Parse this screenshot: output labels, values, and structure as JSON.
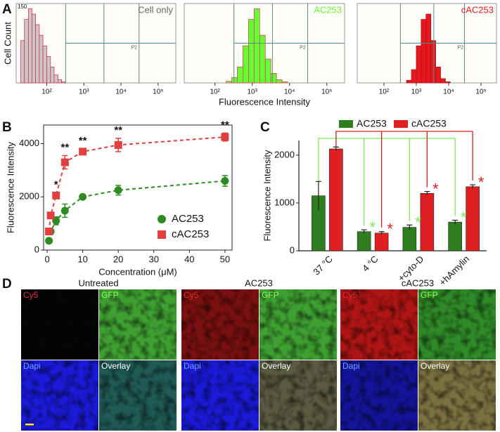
{
  "chart_data": [
    {
      "type": "histogram",
      "panel": "A",
      "ylabel": "Cell Count",
      "xscale": "log",
      "xlim": [
        15,
        300000
      ],
      "xticks": [
        {
          "value": 100,
          "label": "10²"
        },
        {
          "value": 1000,
          "label": "10³"
        },
        {
          "value": 10000,
          "label": "10⁴"
        },
        {
          "value": 100000,
          "label": "10⁵"
        }
      ],
      "ylim": [
        0,
        150
      ],
      "yticks": [
        150
      ],
      "label": "Cell only",
      "label_color": "#666666",
      "gate_label": "P2",
      "color": "#c8c8c8",
      "edgecolor": "#e0304a",
      "bins": [
        20,
        25,
        32,
        40,
        50,
        63,
        79,
        100,
        126,
        158,
        200,
        251,
        316
      ],
      "counts": [
        80,
        120,
        140,
        130,
        110,
        90,
        70,
        50,
        30,
        15,
        6,
        2
      ]
    },
    {
      "type": "histogram",
      "xlabel": "Fluorescence Intensity",
      "xscale": "log",
      "xlim": [
        15,
        300000
      ],
      "xticks": [
        {
          "value": 100,
          "label": "10²"
        },
        {
          "value": 1000,
          "label": "10³"
        },
        {
          "value": 10000,
          "label": "10⁴"
        },
        {
          "value": 100000,
          "label": "10⁵"
        }
      ],
      "ylim": [
        0,
        150
      ],
      "label": "AC253",
      "label_color": "#66ff33",
      "gate_label": "P2",
      "color": "#66ff33",
      "edgecolor": "#e04060",
      "bins": [
        200,
        282,
        398,
        562,
        794,
        1122,
        1585,
        2239,
        3162,
        4467,
        6310,
        8913
      ],
      "counts": [
        3,
        10,
        30,
        70,
        120,
        140,
        90,
        45,
        18,
        6,
        2
      ]
    },
    {
      "type": "histogram",
      "xscale": "log",
      "xlim": [
        15,
        300000
      ],
      "xticks": [
        {
          "value": 100,
          "label": "10²"
        },
        {
          "value": 1000,
          "label": "10³"
        },
        {
          "value": 10000,
          "label": "10⁴"
        },
        {
          "value": 100000,
          "label": "10⁵"
        }
      ],
      "ylim": [
        0,
        150
      ],
      "label": "cAC253",
      "label_color": "#e8191e",
      "gate_label": "P2",
      "color": "#e8191e",
      "edgecolor": "#b01018",
      "bins": [
        500,
        708,
        1000,
        1413,
        1995,
        2818,
        3981,
        5623,
        7943,
        11220
      ],
      "counts": [
        5,
        25,
        70,
        120,
        130,
        80,
        30,
        8,
        2
      ]
    },
    {
      "type": "line",
      "panel": "B",
      "xlabel": "Concentration (μM)",
      "ylabel": "Fluorescence Intensity",
      "x": [
        0.5,
        1,
        2.5,
        5,
        10,
        20,
        50
      ],
      "xlim": [
        -1,
        52
      ],
      "xticks": [
        0,
        10,
        20,
        30,
        40,
        50
      ],
      "ylim": [
        0,
        4700
      ],
      "yticks": [
        0,
        2000,
        4000
      ],
      "legend": "lower right",
      "series": [
        {
          "name": "AC253",
          "color": "#2e8b22",
          "marker": "circle",
          "linestyle": "dashed",
          "values": [
            350,
            700,
            1100,
            1480,
            2000,
            2250,
            2600
          ],
          "errors": [
            50,
            80,
            150,
            250,
            80,
            180,
            200
          ]
        },
        {
          "name": "cAC253",
          "color": "#e04040",
          "marker": "square",
          "linestyle": "dashed",
          "values": [
            700,
            1300,
            2050,
            3300,
            3700,
            3950,
            4250
          ],
          "errors": [
            60,
            80,
            100,
            250,
            100,
            250,
            150
          ]
        }
      ],
      "annotations": [
        {
          "text": "*",
          "series": 1,
          "point": 2
        },
        {
          "text": "**",
          "series": 1,
          "point": 3
        },
        {
          "text": "**",
          "series": 1,
          "point": 4
        },
        {
          "text": "**",
          "series": 1,
          "point": 5
        },
        {
          "text": "**",
          "series": 1,
          "point": 6
        }
      ]
    },
    {
      "type": "bar",
      "panel": "C",
      "ylabel": "Fluorescence Intensity",
      "categories": [
        "37 °C",
        "4 °C",
        "+cyto-D",
        "+hAmylin"
      ],
      "ylim": [
        0,
        2600
      ],
      "yticks": [
        0,
        1000,
        2000
      ],
      "legend": "top",
      "series": [
        {
          "name": "AC253",
          "color": "#2e7d1f",
          "bracket_color": "#7ee85a",
          "values": [
            1150,
            400,
            490,
            600
          ],
          "errors": [
            300,
            40,
            50,
            40
          ]
        },
        {
          "name": "cAC253",
          "color": "#e02020",
          "bracket_color": "#d02020",
          "values": [
            2130,
            370,
            1200,
            1340
          ],
          "errors": [
            40,
            30,
            40,
            40
          ]
        }
      ],
      "annotations": [
        {
          "text": "*",
          "series": 0,
          "category": 1,
          "color": "#7ee85a"
        },
        {
          "text": "*",
          "series": 1,
          "category": 1,
          "color": "#e02020"
        },
        {
          "text": "*",
          "series": 0,
          "category": 2,
          "color": "#7ee85a"
        },
        {
          "text": "*",
          "series": 1,
          "category": 2,
          "color": "#e02020"
        },
        {
          "text": "*",
          "series": 0,
          "category": 3,
          "color": "#7ee85a"
        },
        {
          "text": "*",
          "series": 1,
          "category": 3,
          "color": "#e02020"
        }
      ]
    }
  ],
  "images": {
    "panel": "D",
    "groups": [
      {
        "title": "Untreated",
        "channels": [
          "Cy5",
          "GFP",
          "Dapi",
          "Overlay"
        ],
        "colors": [
          "#050505",
          "#3fa032",
          "#1a1ad8",
          "#1f5a55"
        ]
      },
      {
        "title": "AC253",
        "channels": [
          "Cy5",
          "GFP",
          "Dapi",
          "Overlay"
        ],
        "colors": [
          "#7a1010",
          "#3fa032",
          "#1a1ad8",
          "#5a5a40"
        ]
      },
      {
        "title": "cAC253",
        "channels": [
          "Cy5",
          "GFP",
          "Dapi",
          "Overlay"
        ],
        "colors": [
          "#b01515",
          "#2f8a28",
          "#14149a",
          "#7a7040"
        ]
      }
    ]
  }
}
